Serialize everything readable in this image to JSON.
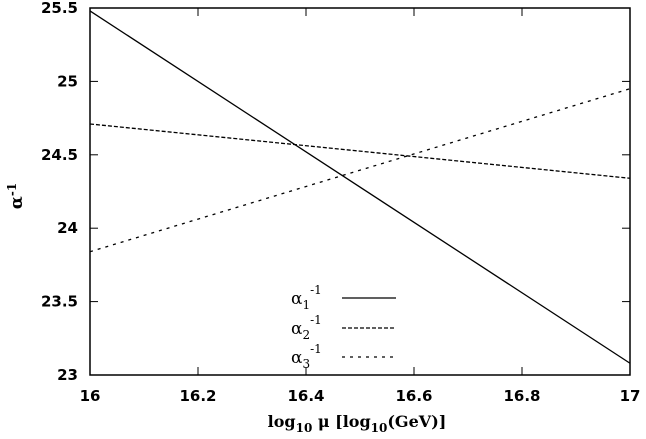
{
  "chart_data": {
    "type": "line",
    "xlabel": "log10 μ [log10(GeV)]",
    "ylabel": "α-1",
    "xlim": [
      16,
      17
    ],
    "ylim": [
      23,
      25.5
    ],
    "xticks": [
      "16",
      "16.2",
      "16.4",
      "16.6",
      "16.8",
      "17"
    ],
    "yticks": [
      "23",
      "23.5",
      "24",
      "24.5",
      "25",
      "25.5"
    ],
    "grid": false,
    "legend_position": "bottom-center",
    "series": [
      {
        "name": "α1-1",
        "style": "solid",
        "x": [
          16,
          17
        ],
        "y": [
          25.48,
          23.08
        ]
      },
      {
        "name": "α2-1",
        "style": "dashed",
        "x": [
          16,
          17
        ],
        "y": [
          24.71,
          24.34
        ]
      },
      {
        "name": "α3-1",
        "style": "dotted",
        "x": [
          16,
          17
        ],
        "y": [
          23.84,
          24.95
        ]
      }
    ]
  },
  "legend": [
    {
      "base": "α",
      "sub": "1",
      "sup": "-1"
    },
    {
      "base": "α",
      "sub": "2",
      "sup": "-1"
    },
    {
      "base": "α",
      "sub": "3",
      "sup": "-1"
    }
  ],
  "axes": {
    "x_title": {
      "pre": "log",
      "sub1": "10",
      "mid": " μ [log",
      "sub2": "10",
      "post": "(GeV)]"
    },
    "y_title": {
      "base": "α",
      "sup": "-1"
    }
  }
}
